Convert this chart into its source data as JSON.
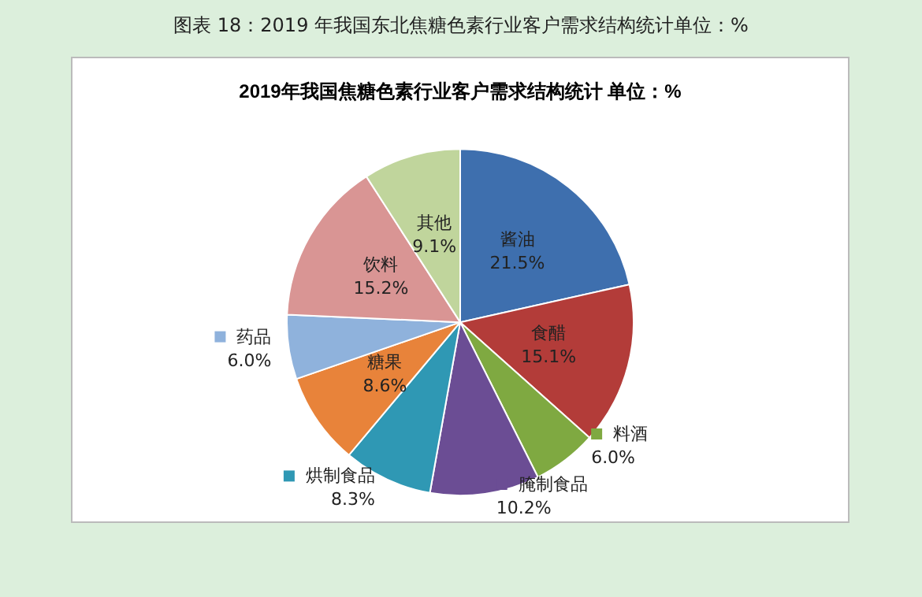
{
  "chart_data": {
    "type": "pie",
    "title": "图表 18：2019 年我国东北焦糖色素行业客户需求结构统计单位：%",
    "subtitle": "2019年我国焦糖色素行业客户需求结构统计 单位：%",
    "categories": [
      "酱油",
      "食醋",
      "料酒",
      "腌制食品",
      "烘制食品",
      "糖果",
      "药品",
      "饮料",
      "其他"
    ],
    "values": [
      21.5,
      15.1,
      6.0,
      10.2,
      8.3,
      8.6,
      6.0,
      15.2,
      9.1
    ],
    "value_labels": [
      "21.5%",
      "15.1%",
      "6.0%",
      "10.2%",
      "8.3%",
      "8.6%",
      "6.0%",
      "15.2%",
      "9.1%"
    ],
    "colors": [
      "#3e6fae",
      "#b33c39",
      "#7fa941",
      "#6b4d94",
      "#2f98b4",
      "#e8833a",
      "#8fb2dc",
      "#d99594",
      "#c0d59c"
    ],
    "legend": "bottom"
  }
}
